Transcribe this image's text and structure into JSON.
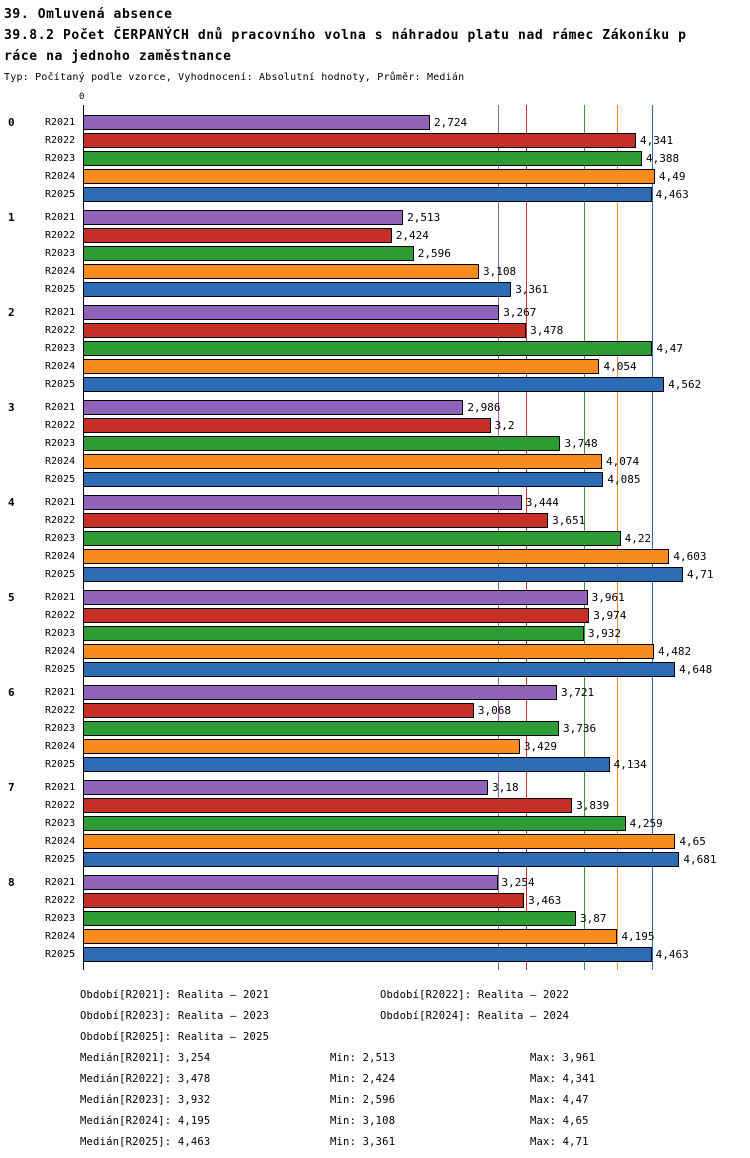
{
  "header": {
    "title_line1": "39. Omluvená absence",
    "title_line2": "39.8.2 Počet ČERPANÝCH dnů pracovního volna s náhradou platu nad rámec Zákoníku p",
    "title_line3": "ráce na jednoho zaměstnance",
    "subtitle": "Typ: Počítaný podle vzorce, Vyhodnocení: Absolutní hodnoty, Průměr: Medián"
  },
  "axis": {
    "origin_label": "0",
    "max": 5
  },
  "chart_data": {
    "type": "bar",
    "orientation": "horizontal",
    "title": "39.8.2 Počet ČERPANÝCH dnů pracovního volna s náhradou platu nad rámec Zákoníku práce na jednoho zaměstnance",
    "xlim": [
      0,
      5
    ],
    "grid": "median-lines-per-series",
    "categories": [
      "0",
      "1",
      "2",
      "3",
      "4",
      "5",
      "6",
      "7",
      "8"
    ],
    "series": [
      {
        "name": "R2021",
        "color": "#8E63B8",
        "median": 3.254,
        "values": [
          2.724,
          2.513,
          3.267,
          2.986,
          3.444,
          3.961,
          3.721,
          3.18,
          3.254
        ]
      },
      {
        "name": "R2022",
        "color": "#C62F25",
        "median": 3.478,
        "values": [
          4.341,
          2.424,
          3.478,
          3.2,
          3.651,
          3.974,
          3.068,
          3.839,
          3.463
        ]
      },
      {
        "name": "R2023",
        "color": "#2E9C35",
        "median": 3.932,
        "values": [
          4.388,
          2.596,
          4.47,
          3.748,
          4.22,
          3.932,
          3.736,
          4.259,
          3.87
        ]
      },
      {
        "name": "R2024",
        "color": "#F78C1E",
        "median": 4.195,
        "values": [
          4.49,
          3.108,
          4.054,
          4.074,
          4.603,
          4.482,
          3.429,
          4.65,
          4.195
        ]
      },
      {
        "name": "R2025",
        "color": "#2B6CB5",
        "median": 4.463,
        "values": [
          4.463,
          3.361,
          4.562,
          4.085,
          4.71,
          4.648,
          4.134,
          4.681,
          4.463
        ]
      }
    ]
  },
  "legend": {
    "periods": [
      "Období[R2021]: Realita – 2021",
      "Období[R2022]: Realita – 2022",
      "Období[R2023]: Realita – 2023",
      "Období[R2024]: Realita – 2024",
      "Období[R2025]: Realita – 2025"
    ],
    "stats": [
      {
        "median": "Medián[R2021]: 3,254",
        "min": "Min: 2,513",
        "max": "Max: 3,961"
      },
      {
        "median": "Medián[R2022]: 3,478",
        "min": "Min: 2,424",
        "max": "Max: 4,341"
      },
      {
        "median": "Medián[R2023]: 3,932",
        "min": "Min: 2,596",
        "max": "Max: 4,47"
      },
      {
        "median": "Medián[R2024]: 4,195",
        "min": "Min: 3,108",
        "max": "Max: 4,65"
      },
      {
        "median": "Medián[R2025]: 4,463",
        "min": "Min: 3,361",
        "max": "Max: 4,71"
      }
    ]
  }
}
